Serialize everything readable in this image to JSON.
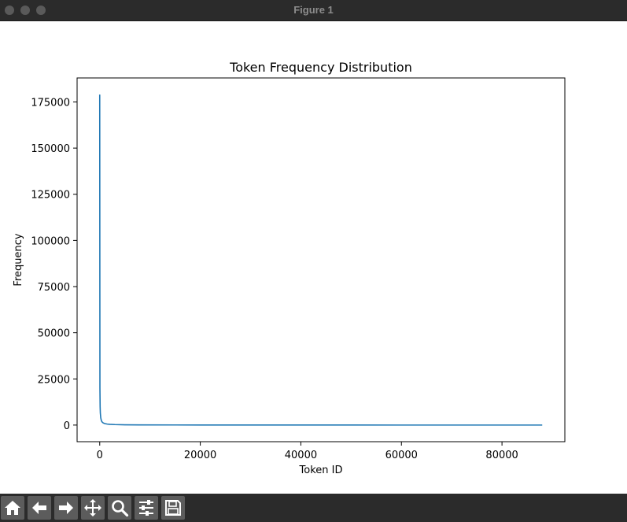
{
  "window": {
    "title": "Figure 1"
  },
  "chart_data": {
    "type": "line",
    "title": "Token Frequency Distribution",
    "xlabel": "Token ID",
    "ylabel": "Frequency",
    "xlim": [
      -4500,
      92500
    ],
    "ylim": [
      -9000,
      188000
    ],
    "xticks": [
      0,
      20000,
      40000,
      60000,
      80000
    ],
    "yticks": [
      0,
      25000,
      50000,
      75000,
      100000,
      125000,
      150000,
      175000
    ],
    "grid": false,
    "color": "#1f77b4",
    "series": [
      {
        "x": [
          0,
          40,
          80,
          120,
          200,
          300,
          400,
          500,
          700,
          1000,
          1500,
          2000,
          3000,
          5000,
          8000,
          15000,
          30000,
          50000,
          70000,
          88000
        ],
        "values": [
          179000,
          20000,
          10000,
          6600,
          4000,
          2700,
          2000,
          1600,
          1150,
          800,
          540,
          400,
          270,
          160,
          100,
          55,
          27,
          16,
          11,
          9
        ]
      }
    ]
  },
  "toolbar": {
    "buttons": [
      {
        "name": "home",
        "icon": "home-icon"
      },
      {
        "name": "back",
        "icon": "arrow-left-icon"
      },
      {
        "name": "forward",
        "icon": "arrow-right-icon"
      },
      {
        "name": "pan",
        "icon": "move-icon"
      },
      {
        "name": "zoom",
        "icon": "magnifier-icon"
      },
      {
        "name": "configure",
        "icon": "sliders-icon"
      },
      {
        "name": "save",
        "icon": "floppy-icon"
      }
    ]
  }
}
